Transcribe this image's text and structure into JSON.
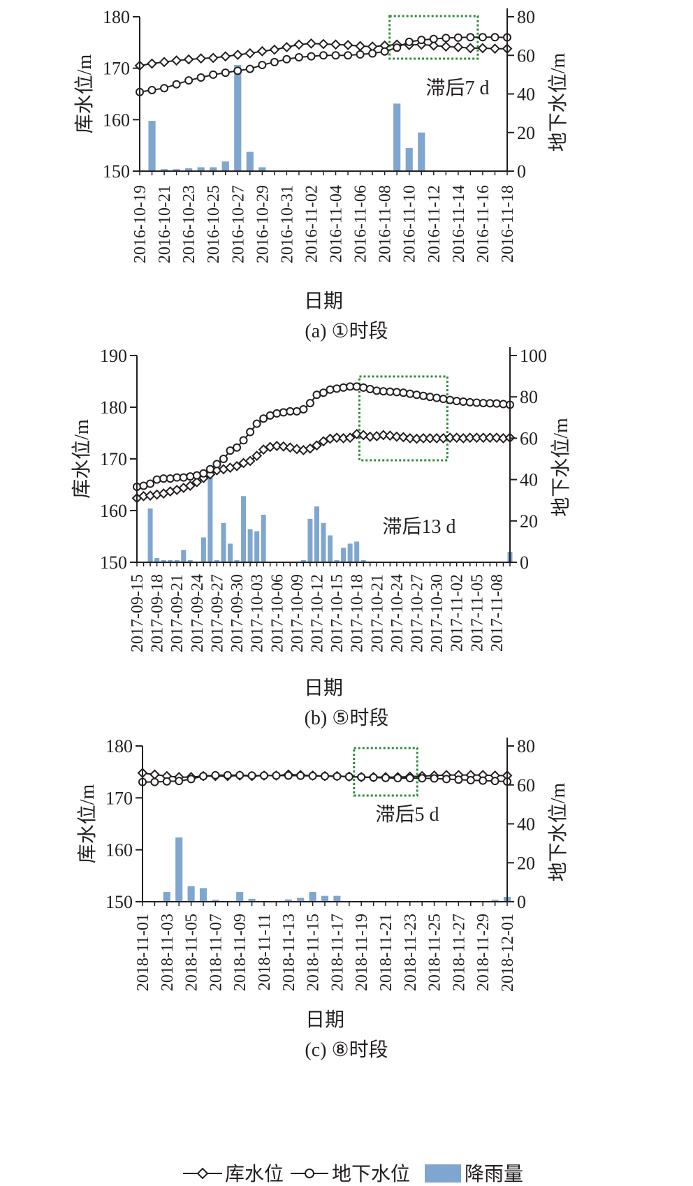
{
  "figure": {
    "panels": [
      {
        "id": "a",
        "caption": "(a) ①时段",
        "xlabel": "日期",
        "ylabel_left": "库水位/m",
        "ylabel_right": "地下水位/m",
        "annotation": "滞后7 d",
        "left_ticks": [
          "150",
          "160",
          "170",
          "180"
        ],
        "right_ticks": [
          "0",
          "20",
          "40",
          "60",
          "80"
        ],
        "date_ticks": [
          "2016-10-19",
          "2016-10-21",
          "2016-10-23",
          "2016-10-25",
          "2016-10-27",
          "2016-10-29",
          "2016-10-31",
          "2016-11-02",
          "2016-11-04",
          "2016-11-06",
          "2016-11-08",
          "2016-11-10",
          "2016-11-12",
          "2016-11-14",
          "2016-11-16",
          "2016-11-18"
        ]
      },
      {
        "id": "b",
        "caption": "(b) ⑤时段",
        "xlabel": "日期",
        "ylabel_left": "库水位/m",
        "ylabel_right": "地下水位/m",
        "annotation": "滞后13 d",
        "left_ticks": [
          "150",
          "160",
          "170",
          "180",
          "190"
        ],
        "right_ticks": [
          "0",
          "20",
          "40",
          "60",
          "80",
          "100"
        ],
        "date_ticks": [
          "2017-09-15",
          "2017-09-18",
          "2017-09-21",
          "2017-09-24",
          "2017-09-27",
          "2017-09-30",
          "2017-10-03",
          "2017-10-06",
          "2017-10-09",
          "2017-10-12",
          "2017-10-15",
          "2017-10-18",
          "2017-10-21",
          "2017-10-24",
          "2017-10-27",
          "2017-10-30",
          "2017-11-02",
          "2017-11-05",
          "2017-11-08"
        ]
      },
      {
        "id": "c",
        "caption": "(c) ⑧时段",
        "xlabel": "日期",
        "ylabel_left": "库水位/m",
        "ylabel_right": "地下水位/m",
        "annotation": "滞后5 d",
        "left_ticks": [
          "150",
          "160",
          "170",
          "180"
        ],
        "right_ticks": [
          "0",
          "20",
          "40",
          "60",
          "80"
        ],
        "date_ticks": [
          "2018-11-01",
          "2018-11-03",
          "2018-11-05",
          "2018-11-07",
          "2018-11-09",
          "2018-11-11",
          "2018-11-13",
          "2018-11-15",
          "2018-11-17",
          "2018-11-19",
          "2018-11-21",
          "2018-11-23",
          "2018-11-25",
          "2018-11-27",
          "2018-11-29",
          "2018-12-01"
        ]
      }
    ],
    "legend": {
      "reservoir_label": "库水位",
      "groundwater_label": "地下水位",
      "rainfall_label": "降雨量"
    }
  },
  "colors": {
    "line": "#231f20",
    "bar": "#7ea6cf",
    "lag_box": "#2e8b3a",
    "text": "#231f20"
  },
  "chart_data": [
    {
      "type": "bar+line",
      "panel": "a",
      "x_start": "2016-10-19",
      "x_days": 31,
      "ylim_left": [
        150,
        180
      ],
      "ylim_right": [
        0,
        80
      ],
      "lag_window": [
        "2016-11-09",
        "2016-11-15"
      ],
      "series": [
        {
          "name": "库水位",
          "axis": "left",
          "marker": "diamond",
          "values": [
            170.5,
            170.9,
            171.2,
            171.5,
            171.7,
            171.9,
            172.0,
            172.3,
            172.6,
            172.9,
            173.3,
            173.6,
            174.1,
            174.6,
            174.8,
            174.7,
            174.6,
            174.5,
            174.3,
            174.2,
            174.4,
            174.6,
            174.5,
            174.6,
            174.4,
            174.2,
            174.1,
            173.9,
            173.9,
            173.8,
            173.8
          ]
        },
        {
          "name": "地下水位",
          "axis": "right",
          "marker": "circle",
          "values": [
            41,
            42,
            43,
            45,
            47,
            48.5,
            50,
            51,
            52,
            53,
            55,
            56.5,
            58,
            59,
            59.5,
            60,
            60,
            60,
            60.5,
            61,
            62,
            64,
            67,
            68,
            68.5,
            69,
            69.2,
            69.4,
            69.4,
            69.4,
            69.3
          ]
        },
        {
          "name": "降雨量",
          "axis": "right",
          "type": "bar",
          "values": [
            0,
            26,
            1,
            1,
            1.5,
            2,
            2,
            5,
            55,
            10,
            2,
            0,
            0,
            0,
            0,
            0,
            0,
            0,
            0,
            0,
            0,
            35,
            12,
            20,
            0,
            0,
            0,
            0,
            0,
            0,
            0
          ]
        }
      ]
    },
    {
      "type": "bar+line",
      "panel": "b",
      "x_start": "2017-09-15",
      "x_days": 57,
      "ylim_left": [
        150,
        190
      ],
      "ylim_right": [
        0,
        100
      ],
      "lag_window": [
        "2017-10-19",
        "2017-10-31"
      ],
      "series": [
        {
          "name": "库水位",
          "axis": "left",
          "marker": "diamond",
          "values": [
            162.4,
            162.8,
            162.9,
            163.1,
            163.3,
            163.7,
            164.0,
            164.4,
            164.8,
            165.5,
            166.3,
            167.0,
            167.8,
            168.0,
            168.3,
            168.6,
            169.2,
            169.6,
            170.6,
            171.8,
            172.3,
            172.5,
            172.4,
            172.2,
            171.9,
            171.7,
            172.0,
            172.6,
            173.4,
            173.9,
            174.1,
            174.0,
            174.1,
            174.8,
            174.6,
            174.3,
            174.4,
            174.6,
            174.5,
            174.3,
            174.2,
            174.0,
            173.9,
            174.0,
            174.0,
            174.0,
            174.0,
            174.1,
            174.1,
            174.0,
            174.1,
            174.1,
            174.1,
            174.1,
            174.1,
            174.0,
            174.1
          ]
        },
        {
          "name": "地下水位",
          "axis": "right",
          "marker": "circle",
          "values": [
            36.5,
            37,
            38,
            40,
            40.5,
            40.5,
            41,
            41,
            41.5,
            42,
            43,
            45,
            47.5,
            50,
            54,
            55.5,
            59,
            63,
            67,
            69.5,
            71,
            72,
            72.5,
            73,
            73,
            74,
            77,
            81,
            82,
            83.5,
            84,
            84.5,
            85,
            85,
            84.5,
            83.8,
            83,
            82.7,
            82.5,
            82.3,
            82,
            81.5,
            81,
            80.5,
            80,
            79.5,
            79,
            78.5,
            78,
            77.7,
            77.4,
            77.2,
            77,
            76.9,
            76.8,
            76.5,
            76.2
          ]
        },
        {
          "name": "降雨量",
          "axis": "right",
          "type": "bar",
          "values": [
            0,
            0,
            26,
            2,
            1,
            1,
            1,
            6,
            1,
            0,
            12,
            44,
            1,
            19,
            9,
            1,
            32,
            16,
            15,
            23,
            0,
            0,
            0,
            0,
            0,
            1,
            21,
            27,
            19,
            13,
            1,
            7,
            9,
            10,
            1,
            0,
            0,
            0,
            0,
            0,
            0,
            0,
            0,
            0,
            0,
            0,
            0,
            0,
            0,
            0,
            0,
            0,
            0,
            0,
            0,
            0,
            5
          ]
        }
      ]
    },
    {
      "type": "bar+line",
      "panel": "c",
      "x_start": "2018-11-01",
      "x_days": 31,
      "ylim_left": [
        150,
        180
      ],
      "ylim_right": [
        0,
        80
      ],
      "lag_window": [
        "2018-11-19",
        "2018-11-23"
      ],
      "series": [
        {
          "name": "库水位",
          "axis": "left",
          "marker": "diamond",
          "values": [
            174.8,
            174.5,
            174.2,
            174.0,
            174.0,
            174.2,
            174.2,
            174.2,
            174.3,
            174.2,
            174.3,
            174.3,
            174.5,
            174.4,
            174.3,
            174.2,
            174.2,
            174.1,
            174.0,
            174.0,
            174.0,
            174.0,
            174.1,
            174.2,
            174.3,
            174.4,
            174.4,
            174.4,
            174.4,
            174.3,
            174.3
          ]
        },
        {
          "name": "地下水位",
          "axis": "right",
          "marker": "circle",
          "values": [
            61.5,
            61.5,
            61.8,
            62,
            63,
            64.5,
            65,
            65,
            65,
            64.8,
            64.8,
            64.8,
            64.8,
            64.7,
            64.6,
            64.5,
            64.4,
            64.2,
            64.0,
            63.8,
            63.6,
            63.5,
            63.5,
            63.4,
            63.3,
            63.0,
            62.7,
            62.4,
            62.2,
            62.0,
            61.7
          ]
        },
        {
          "name": "降雨量",
          "axis": "right",
          "type": "bar",
          "values": [
            0,
            0,
            5,
            33,
            8,
            7,
            1,
            0,
            5,
            1.5,
            0,
            0,
            1.2,
            2,
            5,
            3,
            3,
            0,
            0,
            0,
            0,
            0,
            0,
            0,
            0,
            0,
            0,
            0,
            0,
            1,
            2.5
          ]
        }
      ]
    }
  ]
}
